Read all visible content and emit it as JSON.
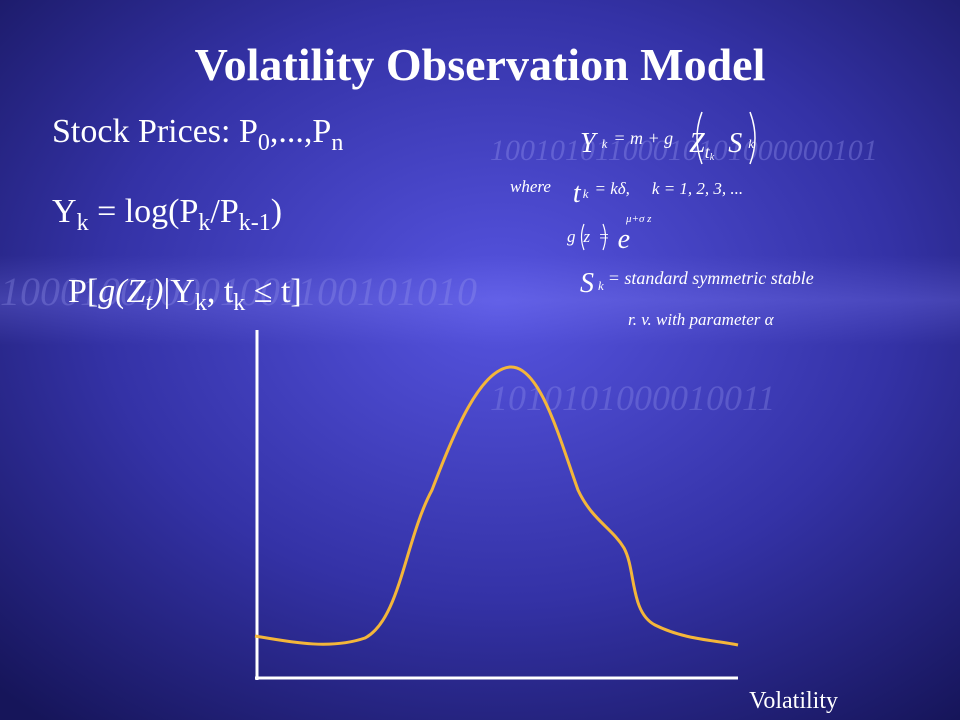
{
  "title": "Volatility Observation Model",
  "left": {
    "line1": [
      "Stock Prices: P",
      "0",
      ",...,P",
      "n"
    ],
    "line2": [
      "Y",
      "k",
      " = log(P",
      "k",
      "/P",
      "k-1",
      ")"
    ],
    "line3": [
      "P[",
      "g(Z",
      "t",
      ")",
      "|Y",
      "k",
      ", t",
      "k",
      " ≤ t]"
    ]
  },
  "right": {
    "eq1": [
      "Y",
      "k",
      "= m + g",
      "Z",
      "t",
      "k",
      "S",
      "k"
    ],
    "eq2": [
      "where",
      "t",
      "k",
      "= kδ,",
      "k = 1, 2, 3, ..."
    ],
    "eq3": [
      "g",
      "z",
      "=",
      "e",
      "μ+σ z"
    ],
    "eq4": [
      "S",
      "k",
      "= standard symmetric stable"
    ],
    "eq5": [
      "r. v. with parameter α"
    ]
  },
  "x_axis_label": "Volatility",
  "background_digits": [
    "10010101100010101000000101",
    "100010010001001100101010",
    "1010101000010011"
  ]
}
